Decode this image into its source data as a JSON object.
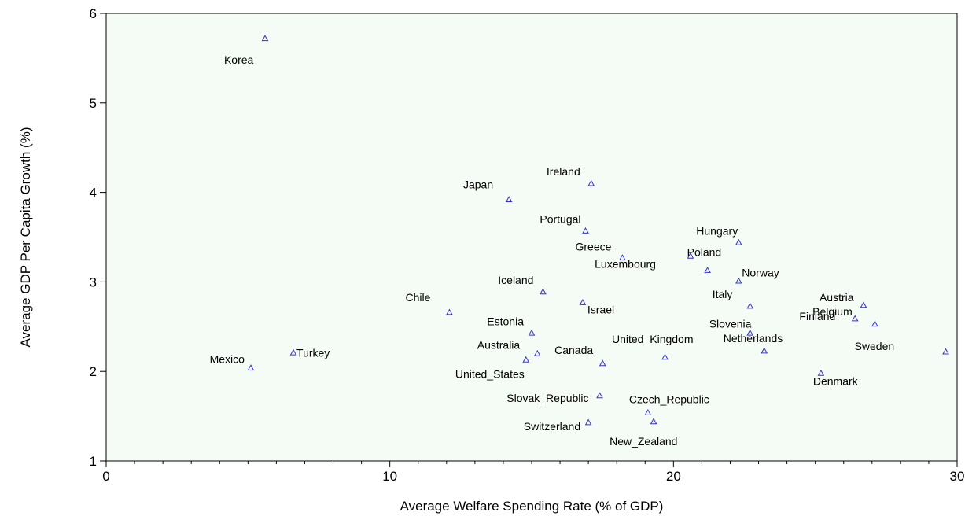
{
  "chart_data": {
    "type": "scatter",
    "title": "",
    "xlabel": "Average Welfare Spending Rate (% of GDP)",
    "ylabel": "Average GDP Per Capita Growth (%)",
    "xlim": [
      0,
      30
    ],
    "ylim": [
      1,
      6
    ],
    "xticks": [
      "0",
      "10",
      "20",
      "30"
    ],
    "yticks": [
      "1",
      "2",
      "3",
      "4",
      "5",
      "6"
    ],
    "grid": false,
    "marker": "triangle",
    "marker_color": "#3333cc",
    "plot_background": "#f5fbf5",
    "points": [
      {
        "label": "Korea",
        "x": 5.6,
        "y": 5.72
      },
      {
        "label": "Mexico",
        "x": 5.1,
        "y": 2.04
      },
      {
        "label": "Turkey",
        "x": 6.6,
        "y": 2.21
      },
      {
        "label": "Chile",
        "x": 12.1,
        "y": 2.66
      },
      {
        "label": "Japan",
        "x": 14.2,
        "y": 3.92
      },
      {
        "label": "Ireland",
        "x": 17.1,
        "y": 4.1
      },
      {
        "label": "Portugal",
        "x": 16.9,
        "y": 3.57
      },
      {
        "label": "Greece",
        "x": 18.2,
        "y": 3.27
      },
      {
        "label": "Iceland",
        "x": 15.4,
        "y": 2.89
      },
      {
        "label": "Israel",
        "x": 16.8,
        "y": 2.77
      },
      {
        "label": "Estonia",
        "x": 15.0,
        "y": 2.43
      },
      {
        "label": "Australia",
        "x": 15.2,
        "y": 2.2
      },
      {
        "label": "United_States",
        "x": 14.8,
        "y": 2.13
      },
      {
        "label": "Canada",
        "x": 17.5,
        "y": 2.09
      },
      {
        "label": "Slovak_Republic",
        "x": 17.4,
        "y": 1.73
      },
      {
        "label": "Switzerland",
        "x": 17.0,
        "y": 1.43
      },
      {
        "label": "Czech_Republic",
        "x": 19.1,
        "y": 1.54
      },
      {
        "label": "New_Zealand",
        "x": 19.3,
        "y": 1.44
      },
      {
        "label": "United_Kingdom",
        "x": 19.7,
        "y": 2.16
      },
      {
        "label": "Luxembourg",
        "x": 20.6,
        "y": 3.29
      },
      {
        "label": "Poland",
        "x": 21.2,
        "y": 3.13
      },
      {
        "label": "Hungary",
        "x": 22.3,
        "y": 3.44
      },
      {
        "label": "Norway",
        "x": 22.3,
        "y": 3.01
      },
      {
        "label": "Italy",
        "x": 22.7,
        "y": 2.73
      },
      {
        "label": "Slovenia",
        "x": 22.7,
        "y": 2.43
      },
      {
        "label": "Netherlands",
        "x": 23.2,
        "y": 2.23
      },
      {
        "label": "Denmark",
        "x": 25.2,
        "y": 1.98
      },
      {
        "label": "Belgium",
        "x": 26.4,
        "y": 2.59
      },
      {
        "label": "Austria",
        "x": 26.7,
        "y": 2.74
      },
      {
        "label": "Finland",
        "x": 27.1,
        "y": 2.53
      },
      {
        "label": "Sweden",
        "x": 29.6,
        "y": 2.22
      }
    ]
  }
}
